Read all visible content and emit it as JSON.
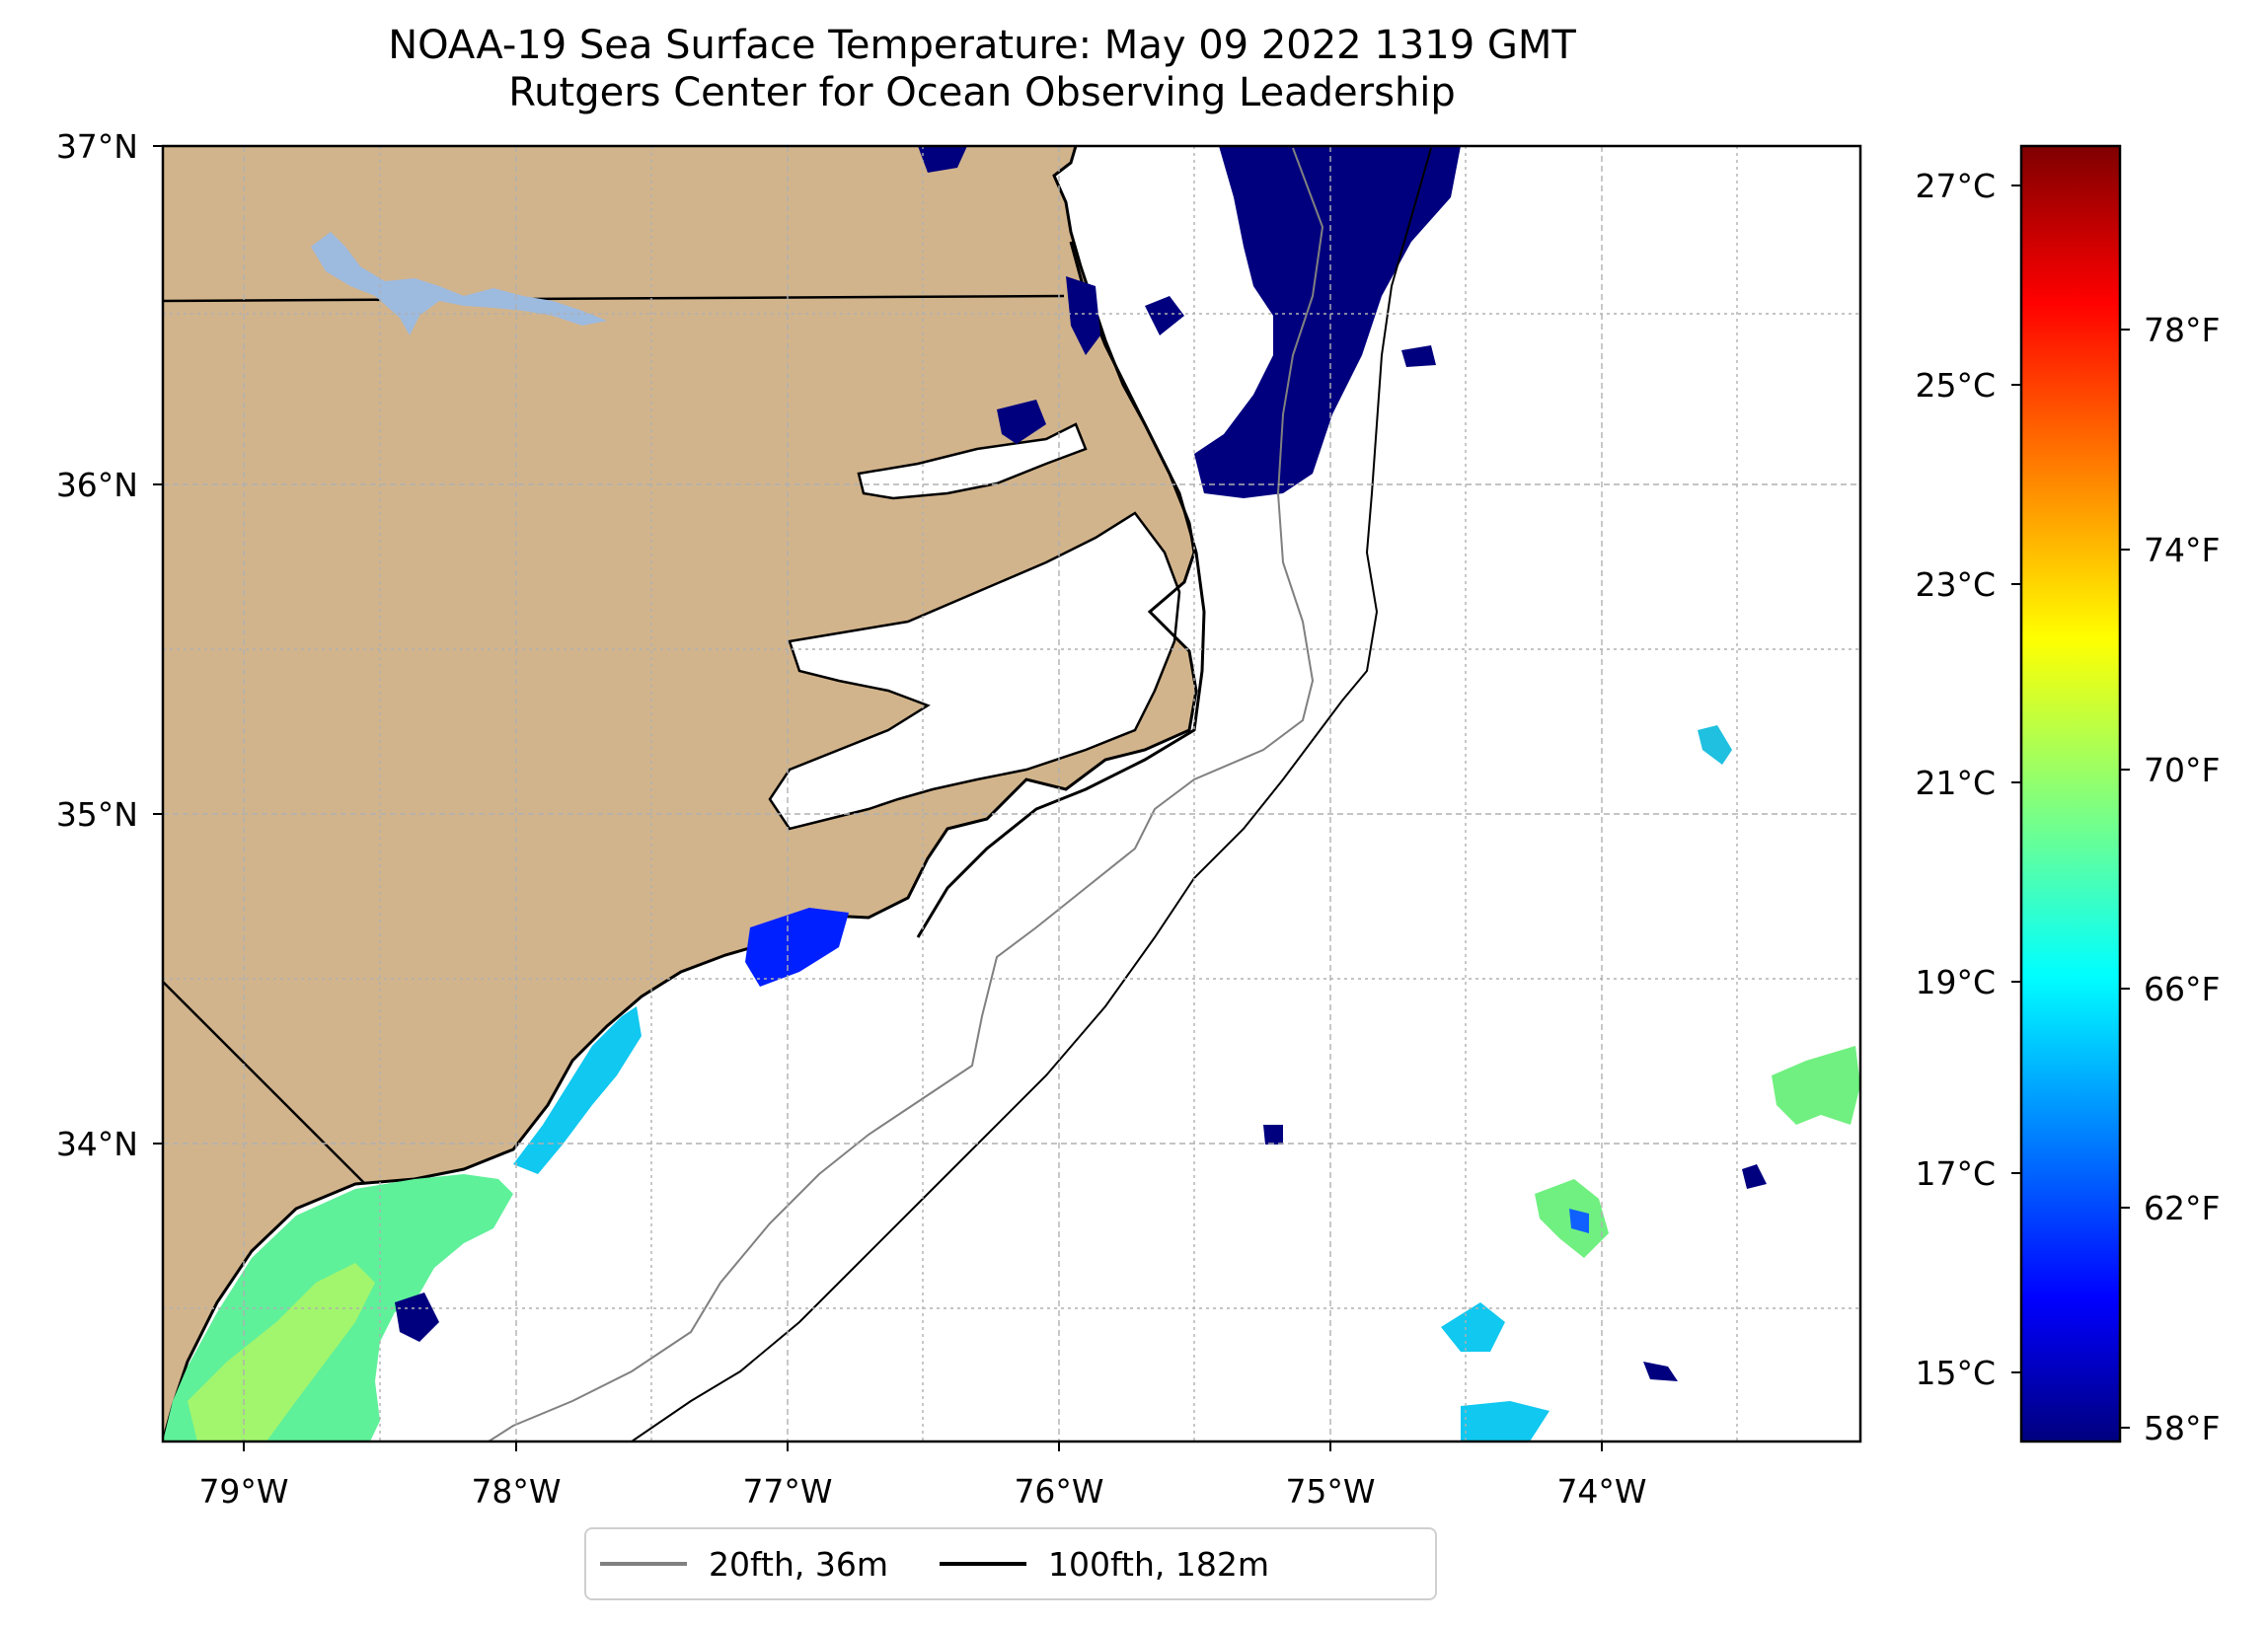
{
  "title": {
    "line1": "NOAA-19 Sea Surface Temperature: May 09 2022 1319 GMT",
    "line2": "Rutgers Center for Ocean Observing Leadership"
  },
  "map": {
    "lat_ticks": [
      "37°N",
      "36°N",
      "35°N",
      "34°N"
    ],
    "lon_ticks": [
      "79°W",
      "78°W",
      "77°W",
      "76°W",
      "75°W",
      "74°W"
    ],
    "extent": {
      "lon": [
        -79.3,
        -73.1
      ],
      "lat": [
        33.1,
        37.0
      ]
    },
    "colors": {
      "land": "#d2b48c",
      "lake": "#9dbadf",
      "ocean": "#ffffff",
      "grid": "#b0b0b0",
      "coast": "#000000",
      "isobath_20": "#808080",
      "isobath_100": "#000000"
    }
  },
  "colorbar": {
    "celsius_ticks": [
      "27°C",
      "25°C",
      "23°C",
      "21°C",
      "19°C",
      "17°C",
      "15°C"
    ],
    "fahrenheit_ticks": [
      "78°F",
      "74°F",
      "70°F",
      "66°F",
      "62°F",
      "58°F"
    ],
    "range_celsius": [
      14.5,
      27.5
    ],
    "colormap": "jet"
  },
  "legend": {
    "entries": [
      {
        "label": "20fth, 36m",
        "color": "#808080"
      },
      {
        "label": "100fth, 182m",
        "color": "#000000"
      }
    ]
  }
}
